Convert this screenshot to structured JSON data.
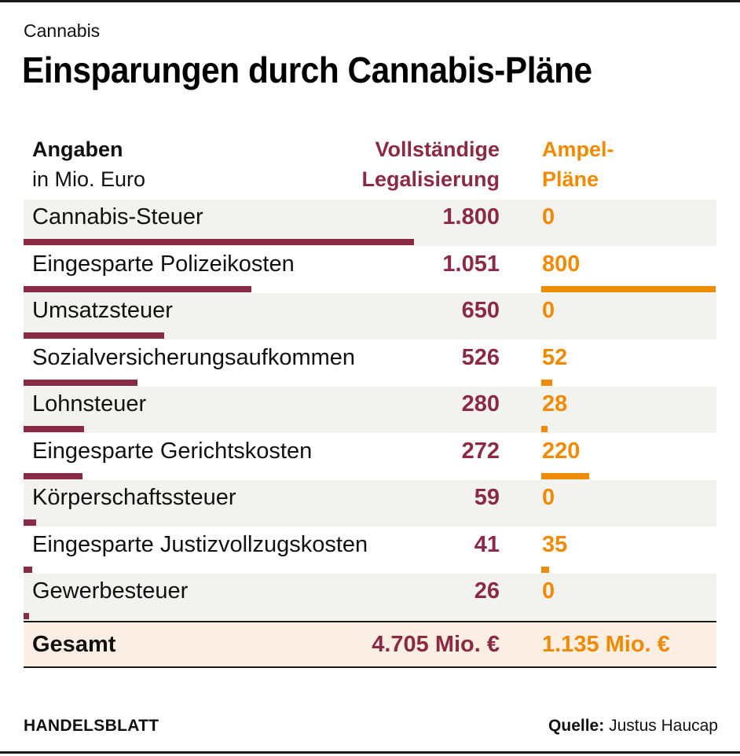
{
  "kicker": "Cannabis",
  "title": "Einsparungen durch Cannabis-Pläne",
  "header": {
    "label_bold": "Angaben",
    "label_regular": "in Mio. Euro",
    "full_line1": "Vollständige",
    "full_line2": "Legalisierung",
    "ampel_line1": "Ampel-",
    "ampel_line2": "Pläne"
  },
  "chart_data": {
    "type": "table",
    "title": "Einsparungen durch Cannabis-Pläne",
    "unit": "in Mio. Euro",
    "series": [
      {
        "name": "Vollständige Legalisierung",
        "color": "#8a2a45"
      },
      {
        "name": "Ampel-Pläne",
        "color": "#f08a00"
      }
    ],
    "rows": [
      {
        "label": "Cannabis-Steuer",
        "full": 1800,
        "full_text": "1.800",
        "ampel": 0,
        "ampel_text": "0"
      },
      {
        "label": "Eingesparte Polizeikosten",
        "full": 1051,
        "full_text": "1.051",
        "ampel": 800,
        "ampel_text": "800"
      },
      {
        "label": "Umsatzsteuer",
        "full": 650,
        "full_text": "650",
        "ampel": 0,
        "ampel_text": "0"
      },
      {
        "label": "Sozialversicherungsaufkommen",
        "full": 526,
        "full_text": "526",
        "ampel": 52,
        "ampel_text": "52"
      },
      {
        "label": "Lohnsteuer",
        "full": 280,
        "full_text": "280",
        "ampel": 28,
        "ampel_text": "28"
      },
      {
        "label": "Eingesparte Gerichtskosten",
        "full": 272,
        "full_text": "272",
        "ampel": 220,
        "ampel_text": "220"
      },
      {
        "label": "Körperschaftssteuer",
        "full": 59,
        "full_text": "59",
        "ampel": 0,
        "ampel_text": "0"
      },
      {
        "label": "Eingesparte Justizvollzugskosten",
        "full": 41,
        "full_text": "41",
        "ampel": 35,
        "ampel_text": "35"
      },
      {
        "label": "Gewerbesteuer",
        "full": 26,
        "full_text": "26",
        "ampel": 0,
        "ampel_text": "0"
      }
    ],
    "total": {
      "label": "Gesamt",
      "full_text": "4.705 Mio. €",
      "ampel_text": "1.135 Mio. €"
    },
    "full_max": 1800,
    "ampel_max": 800
  },
  "footer": {
    "brand": "HANDELSBLATT",
    "source_label": "Quelle:",
    "source_value": "Justus Haucap"
  }
}
